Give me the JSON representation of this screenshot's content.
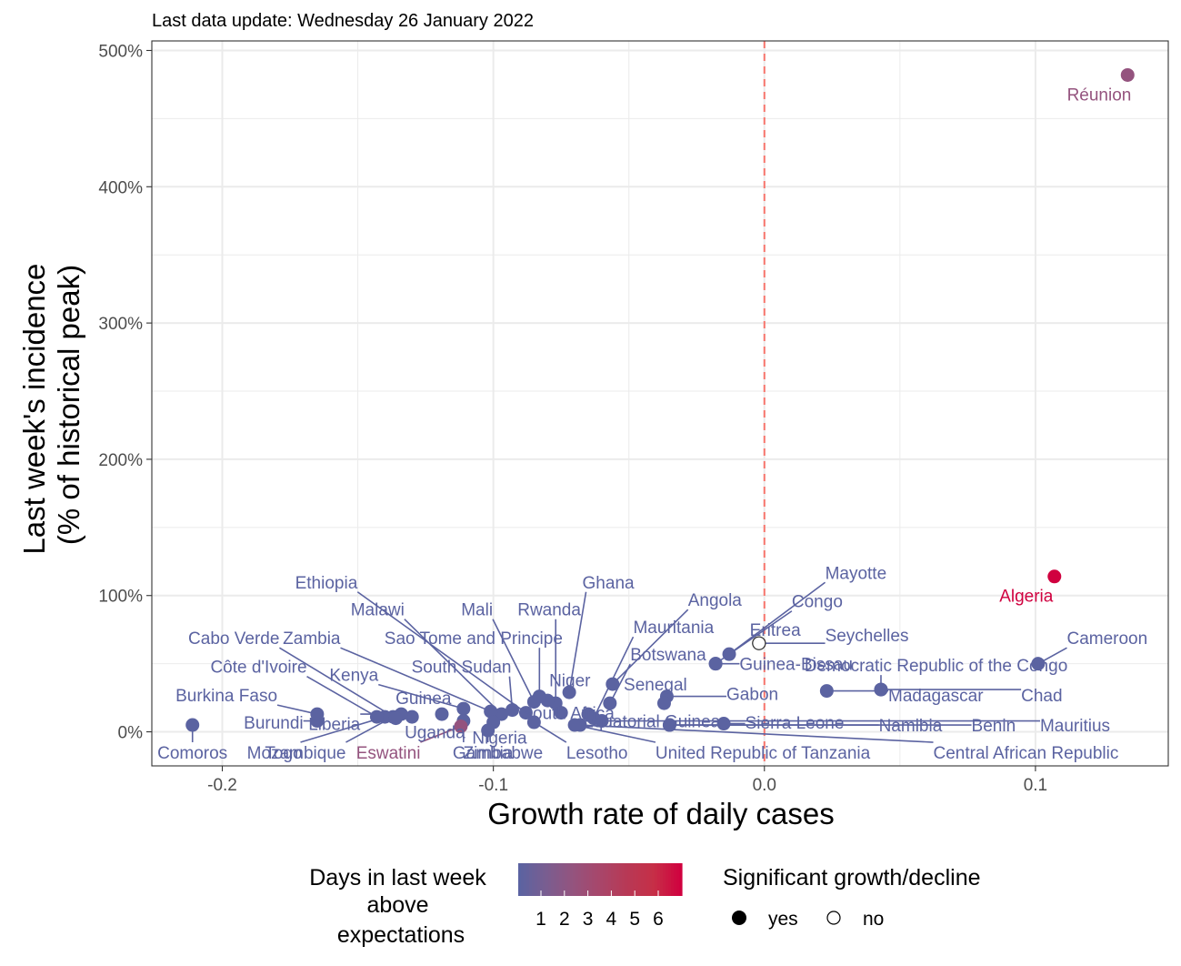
{
  "chart_data": {
    "type": "scatter",
    "subtitle": "Last data update: Wednesday 26 January 2022",
    "xlabel": "Growth rate of daily cases",
    "ylabel_lines": [
      "Last week's incidence",
      "(% of historical peak)"
    ],
    "xlim": [
      -0.226,
      0.149
    ],
    "ylim": [
      -25,
      507
    ],
    "x_ticks": [
      -0.2,
      -0.1,
      0.0,
      0.1
    ],
    "x_tick_labels": [
      "-0.2",
      "-0.1",
      "0.0",
      "0.1"
    ],
    "y_ticks": [
      0,
      100,
      200,
      300,
      400,
      500
    ],
    "y_tick_labels": [
      "0%",
      "100%",
      "200%",
      "300%",
      "400%",
      "500%"
    ],
    "grid": true,
    "reference_line_x": 0,
    "colors": {
      "scale": [
        "#5b63a1",
        "#7a5d90",
        "#94537e",
        "#a8466a",
        "#b83955",
        "#c62f47",
        "#d0013f"
      ],
      "reference_line": "#f8766d",
      "grid": "#ebebeb",
      "panel_border": "#333333"
    },
    "legend_color": {
      "title_lines": [
        "Days in last week",
        "above",
        "expectations"
      ],
      "labels": [
        "1",
        "2",
        "3",
        "4",
        "5",
        "6"
      ]
    },
    "legend_shape": {
      "title": "Significant growth/decline",
      "items": [
        {
          "label": "yes",
          "filled": true
        },
        {
          "label": "no",
          "filled": false
        }
      ]
    },
    "points": [
      {
        "name": "Réunion",
        "x": 0.134,
        "y": 482,
        "sig": true,
        "days": 2
      },
      {
        "name": "Algeria",
        "x": 0.107,
        "y": 114,
        "sig": true,
        "days": 6
      },
      {
        "name": "Cameroon",
        "x": 0.101,
        "y": 50,
        "sig": true,
        "days": 0
      },
      {
        "name": "Democratic Republic of the Congo",
        "x": 0.043,
        "y": 31,
        "sig": true,
        "days": 0
      },
      {
        "name": "Madagascar",
        "x": 0.023,
        "y": 30,
        "sig": true,
        "days": 0
      },
      {
        "name": "Chad",
        "x": 0.043,
        "y": 31,
        "sig": true,
        "days": 0
      },
      {
        "name": "Mayotte",
        "x": -0.013,
        "y": 57,
        "sig": true,
        "days": 0
      },
      {
        "name": "Congo",
        "x": -0.018,
        "y": 50,
        "sig": true,
        "days": 0
      },
      {
        "name": "Eritrea",
        "x": -0.002,
        "y": 65,
        "sig": false,
        "days": 0
      },
      {
        "name": "Seychelles",
        "x": -0.002,
        "y": 65,
        "sig": false,
        "days": 0
      },
      {
        "name": "Guinea-Bissau",
        "x": -0.018,
        "y": 50,
        "sig": true,
        "days": 0
      },
      {
        "name": "Gabon",
        "x": -0.036,
        "y": 26,
        "sig": true,
        "days": 0
      },
      {
        "name": "Sierra Leone",
        "x": -0.015,
        "y": 6,
        "sig": true,
        "days": 0
      },
      {
        "name": "Namibia",
        "x": -0.035,
        "y": 5,
        "sig": true,
        "days": 0
      },
      {
        "name": "Benin",
        "x": -0.035,
        "y": 5,
        "sig": true,
        "days": 0
      },
      {
        "name": "Mauritius",
        "x": -0.06,
        "y": 8,
        "sig": true,
        "days": 0
      },
      {
        "name": "Central African Republic",
        "x": -0.068,
        "y": 5,
        "sig": true,
        "days": 0
      },
      {
        "name": "United Republic of Tanzania",
        "x": -0.07,
        "y": 5,
        "sig": true,
        "days": 0
      },
      {
        "name": "Lesotho",
        "x": -0.085,
        "y": 7,
        "sig": true,
        "days": 0
      },
      {
        "name": "Angola",
        "x": -0.056,
        "y": 35,
        "sig": true,
        "days": 0
      },
      {
        "name": "Botswana",
        "x": -0.057,
        "y": 21,
        "sig": true,
        "days": 0
      },
      {
        "name": "Senegal",
        "x": -0.037,
        "y": 21,
        "sig": true,
        "days": 0
      },
      {
        "name": "Mauritania",
        "x": -0.063,
        "y": 10,
        "sig": true,
        "days": 0
      },
      {
        "name": "Equatorial Guinea",
        "x": -0.065,
        "y": 13,
        "sig": true,
        "days": 0
      },
      {
        "name": "Ghana",
        "x": -0.072,
        "y": 29,
        "sig": true,
        "days": 0
      },
      {
        "name": "Rwanda",
        "x": -0.077,
        "y": 21,
        "sig": true,
        "days": 0
      },
      {
        "name": "Niger",
        "x": -0.08,
        "y": 23,
        "sig": true,
        "days": 0
      },
      {
        "name": "South Africa",
        "x": -0.075,
        "y": 14,
        "sig": true,
        "days": 0
      },
      {
        "name": "Mali",
        "x": -0.085,
        "y": 22,
        "sig": true,
        "days": 0
      },
      {
        "name": "Sao Tome and Principe",
        "x": -0.083,
        "y": 26,
        "sig": true,
        "days": 0
      },
      {
        "name": "South Sudan",
        "x": -0.093,
        "y": 16,
        "sig": true,
        "days": 0
      },
      {
        "name": "Ethiopia",
        "x": -0.088,
        "y": 14,
        "sig": true,
        "days": 0
      },
      {
        "name": "Malawi",
        "x": -0.097,
        "y": 13,
        "sig": true,
        "days": 0
      },
      {
        "name": "Zambia",
        "x": -0.101,
        "y": 15,
        "sig": true,
        "days": 0
      },
      {
        "name": "Kenya",
        "x": -0.111,
        "y": 17,
        "sig": true,
        "days": 0
      },
      {
        "name": "Guinea",
        "x": -0.119,
        "y": 13,
        "sig": true,
        "days": 0
      },
      {
        "name": "Nigeria",
        "x": -0.1,
        "y": 7,
        "sig": true,
        "days": 0
      },
      {
        "name": "Zimbabwe",
        "x": -0.102,
        "y": 1,
        "sig": true,
        "days": 0
      },
      {
        "name": "Gambia",
        "x": -0.111,
        "y": 8,
        "sig": true,
        "days": 0
      },
      {
        "name": "Eswatini",
        "x": -0.112,
        "y": 4,
        "sig": true,
        "days": 2
      },
      {
        "name": "Uganda",
        "x": -0.13,
        "y": 11,
        "sig": true,
        "days": 0
      },
      {
        "name": "Mozambique",
        "x": -0.137,
        "y": 11,
        "sig": true,
        "days": 0
      },
      {
        "name": "Togo",
        "x": -0.14,
        "y": 11,
        "sig": true,
        "days": 0
      },
      {
        "name": "Liberia",
        "x": -0.134,
        "y": 13,
        "sig": true,
        "days": 0
      },
      {
        "name": "Côte d'Ivoire",
        "x": -0.143,
        "y": 11,
        "sig": true,
        "days": 0
      },
      {
        "name": "Cabo Verde",
        "x": -0.136,
        "y": 10,
        "sig": true,
        "days": 0
      },
      {
        "name": "Burundi",
        "x": -0.165,
        "y": 8,
        "sig": true,
        "days": 0
      },
      {
        "name": "Burkina Faso",
        "x": -0.165,
        "y": 13,
        "sig": true,
        "days": 0
      },
      {
        "name": "Comoros",
        "x": -0.211,
        "y": 5,
        "sig": true,
        "days": 0
      }
    ],
    "labels": [
      {
        "text": "Réunion",
        "x": 0.1235,
        "y": 468
      },
      {
        "text": "Algeria",
        "x": 0.0966,
        "y": 100
      },
      {
        "text": "Cameroon",
        "x": 0.1116,
        "y": 69,
        "anchor": "start"
      },
      {
        "text": "Democratic Republic of the Congo",
        "x": 0.0148,
        "y": 49,
        "anchor": "start"
      },
      {
        "text": "Madagascar",
        "x": 0.0457,
        "y": 27,
        "anchor": "start"
      },
      {
        "text": "Chad",
        "x": 0.0947,
        "y": 27,
        "anchor": "start"
      },
      {
        "text": "Mayotte",
        "x": 0.0224,
        "y": 117,
        "anchor": "start"
      },
      {
        "text": "Congo",
        "x": 0.0101,
        "y": 96,
        "anchor": "start"
      },
      {
        "text": "Eritrea",
        "x": -0.0054,
        "y": 75,
        "anchor": "start"
      },
      {
        "text": "Seychelles",
        "x": 0.0224,
        "y": 71,
        "anchor": "start"
      },
      {
        "text": "Guinea-Bissau",
        "x": -0.0092,
        "y": 50,
        "anchor": "start"
      },
      {
        "text": "Gabon",
        "x": -0.014,
        "y": 28,
        "anchor": "start"
      },
      {
        "text": "Sierra Leone",
        "x": -0.0071,
        "y": 7,
        "anchor": "start"
      },
      {
        "text": "Namibia",
        "x": 0.0422,
        "y": 5,
        "anchor": "start"
      },
      {
        "text": "Benin",
        "x": 0.0764,
        "y": 5,
        "anchor": "start"
      },
      {
        "text": "Mauritius",
        "x": 0.1017,
        "y": 5,
        "anchor": "start"
      },
      {
        "text": "Central African Republic",
        "x": 0.0623,
        "y": -15,
        "anchor": "start"
      },
      {
        "text": "United Republic of Tanzania",
        "x": -0.0402,
        "y": -15,
        "anchor": "start"
      },
      {
        "text": "Lesotho",
        "x": -0.0731,
        "y": -15,
        "anchor": "start"
      },
      {
        "text": "Angola",
        "x": -0.0282,
        "y": 97,
        "anchor": "start"
      },
      {
        "text": "Botswana",
        "x": -0.0495,
        "y": 57,
        "anchor": "start"
      },
      {
        "text": "Senegal",
        "x": -0.0519,
        "y": 35,
        "anchor": "start"
      },
      {
        "text": "Mauritania",
        "x": -0.0484,
        "y": 77,
        "anchor": "start"
      },
      {
        "text": "Equatorial Guinea",
        "x": -0.0673,
        "y": 8,
        "anchor": "start"
      },
      {
        "text": "Ghana",
        "x": -0.0576,
        "y": 110
      },
      {
        "text": "Rwanda",
        "x": -0.0677,
        "y": 90,
        "anchor": "end"
      },
      {
        "text": "Niger",
        "x": -0.0794,
        "y": 38,
        "anchor": "start"
      },
      {
        "text": "South Africa",
        "x": -0.0897,
        "y": 14,
        "anchor": "start"
      },
      {
        "text": "Mali",
        "x": -0.1002,
        "y": 90,
        "anchor": "end"
      },
      {
        "text": "Sao Tome and Principe",
        "x": -0.1402,
        "y": 69,
        "anchor": "start"
      },
      {
        "text": "South Sudan",
        "x": -0.1302,
        "y": 48,
        "anchor": "start"
      },
      {
        "text": "Ethiopia",
        "x": -0.1501,
        "y": 110,
        "anchor": "end"
      },
      {
        "text": "Malawi",
        "x": -0.1328,
        "y": 90,
        "anchor": "end"
      },
      {
        "text": "Zambia",
        "x": -0.1564,
        "y": 69,
        "anchor": "end"
      },
      {
        "text": "Kenya",
        "x": -0.1424,
        "y": 42,
        "anchor": "end"
      },
      {
        "text": "Guinea",
        "x": -0.1155,
        "y": 25,
        "anchor": "end"
      },
      {
        "text": "Nigeria",
        "x": -0.1078,
        "y": -4,
        "anchor": "start"
      },
      {
        "text": "Zimbabwe",
        "x": -0.0817,
        "y": -15,
        "anchor": "end"
      },
      {
        "text": "Gambia",
        "x": -0.0927,
        "y": -15,
        "anchor": "end"
      },
      {
        "text": "Eswatini",
        "x": -0.1269,
        "y": -15,
        "anchor": "end"
      },
      {
        "text": "Uganda",
        "x": -0.1104,
        "y": 0,
        "anchor": "end"
      },
      {
        "text": "Mozambique",
        "x": -0.1544,
        "y": -15,
        "anchor": "end"
      },
      {
        "text": "Togo",
        "x": -0.1843,
        "y": -15,
        "anchor": "start"
      },
      {
        "text": "Liberia",
        "x": -0.1491,
        "y": 6,
        "anchor": "end"
      },
      {
        "text": "Côte d'Ivoire",
        "x": -0.1688,
        "y": 48,
        "anchor": "end"
      },
      {
        "text": "Cabo Verde",
        "x": -0.1789,
        "y": 69,
        "anchor": "end"
      },
      {
        "text": "Burundi",
        "x": -0.1701,
        "y": 7,
        "anchor": "end"
      },
      {
        "text": "Burkina Faso",
        "x": -0.1797,
        "y": 27,
        "anchor": "end"
      },
      {
        "text": "Comoros",
        "x": -0.1981,
        "y": -15,
        "anchor": "end"
      }
    ]
  }
}
